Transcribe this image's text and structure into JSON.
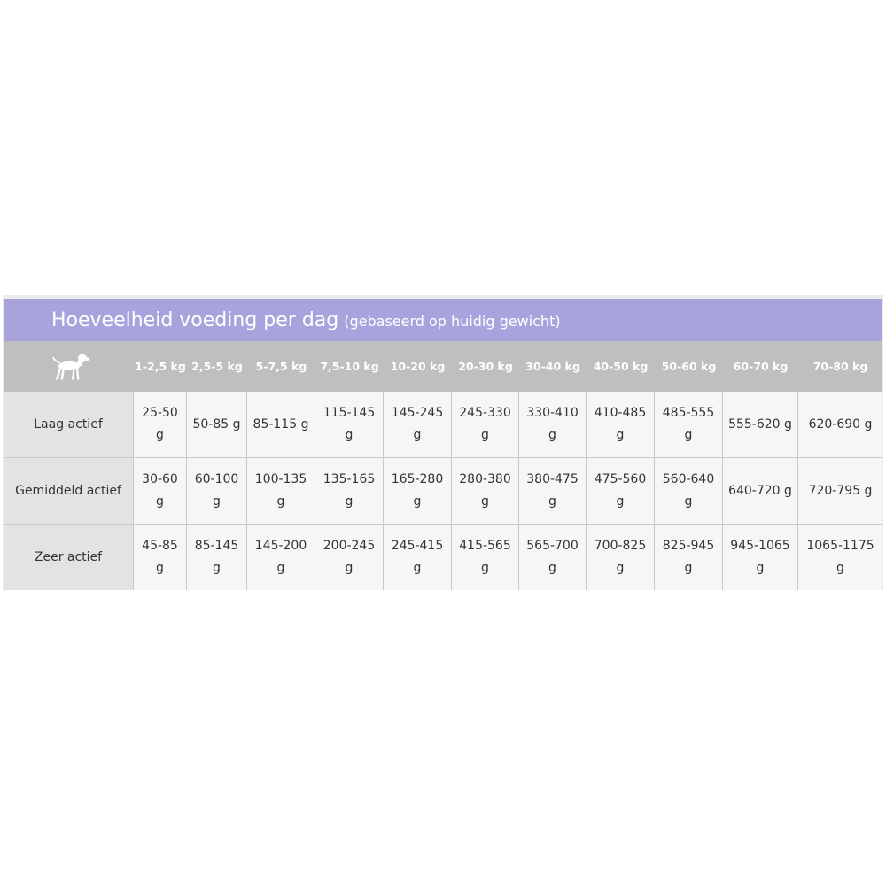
{
  "chart_data": {
    "type": "table",
    "title": "Hoeveelheid voeding per dag",
    "subtitle": "(gebaseerd op huidig gewicht)",
    "columns": [
      "1-2,5 kg",
      "2,5-5 kg",
      "5-7,5 kg",
      "7,5-10 kg",
      "10-20 kg",
      "20-30 kg",
      "30-40 kg",
      "40-50 kg",
      "50-60 kg",
      "60-70 kg",
      "70-80 kg"
    ],
    "rows": [
      {
        "label": "Laag actief",
        "values": [
          "25-50 g",
          "50-85 g",
          "85-115 g",
          "115-145 g",
          "145-245 g",
          "245-330 g",
          "330-410 g",
          "410-485 g",
          "485-555 g",
          "555-620 g",
          "620-690 g"
        ]
      },
      {
        "label": "Gemiddeld actief",
        "values": [
          "30-60 g",
          "60-100 g",
          "100-135 g",
          "135-165 g",
          "165-280 g",
          "280-380 g",
          "380-475 g",
          "475-560 g",
          "560-640 g",
          "640-720 g",
          "720-795 g"
        ]
      },
      {
        "label": "Zeer actief",
        "values": [
          "45-85 g",
          "85-145 g",
          "145-200 g",
          "200-245 g",
          "245-415 g",
          "415-565 g",
          "565-700 g",
          "700-825 g",
          "825-945 g",
          "945-1065 g",
          "1065-1175 g"
        ]
      }
    ],
    "header_icon": "dog-icon",
    "colors": {
      "title_bar": "#a8a3dd",
      "header_row": "#bfbfbf",
      "row_label_bg": "#e3e3e3",
      "cell_bg": "#f6f6f6",
      "text": "#333333"
    }
  }
}
